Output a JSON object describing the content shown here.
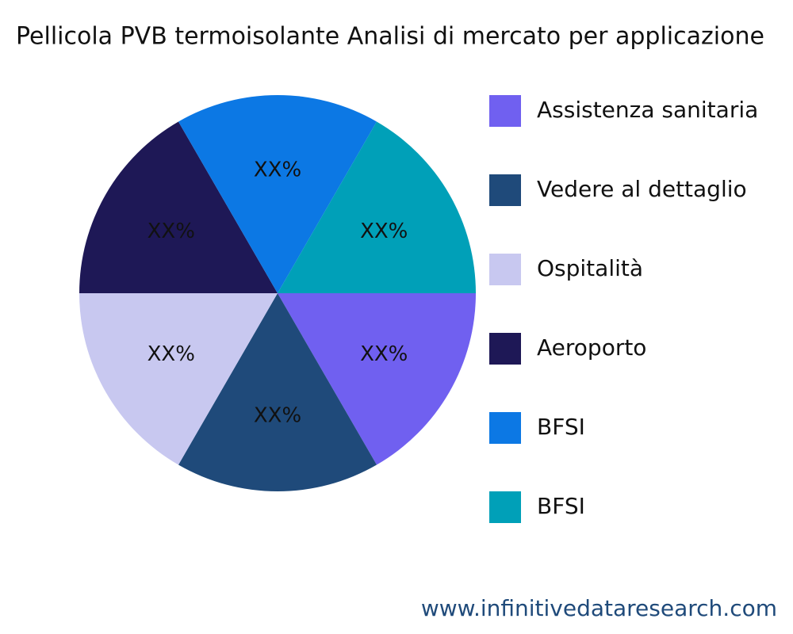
{
  "chart_data": {
    "type": "pie",
    "title": "Pellicola PVB termoisolante Analisi di mercato per applicazione",
    "categories": [
      "Assistenza sanitaria",
      "Vedere al dettaglio",
      "Ospitalità",
      "Aeroporto",
      "BFSI",
      "BFSI"
    ],
    "values": [
      16.67,
      16.67,
      16.67,
      16.67,
      16.67,
      16.67
    ],
    "value_labels": [
      "XX%",
      "XX%",
      "XX%",
      "XX%",
      "XX%",
      "XX%"
    ],
    "colors": [
      "#7060f0",
      "#1f4a7a",
      "#c8c8f0",
      "#1e1856",
      "#0c78e4",
      "#00a0b8"
    ],
    "source": "www.infinitivedataresearch.com"
  }
}
